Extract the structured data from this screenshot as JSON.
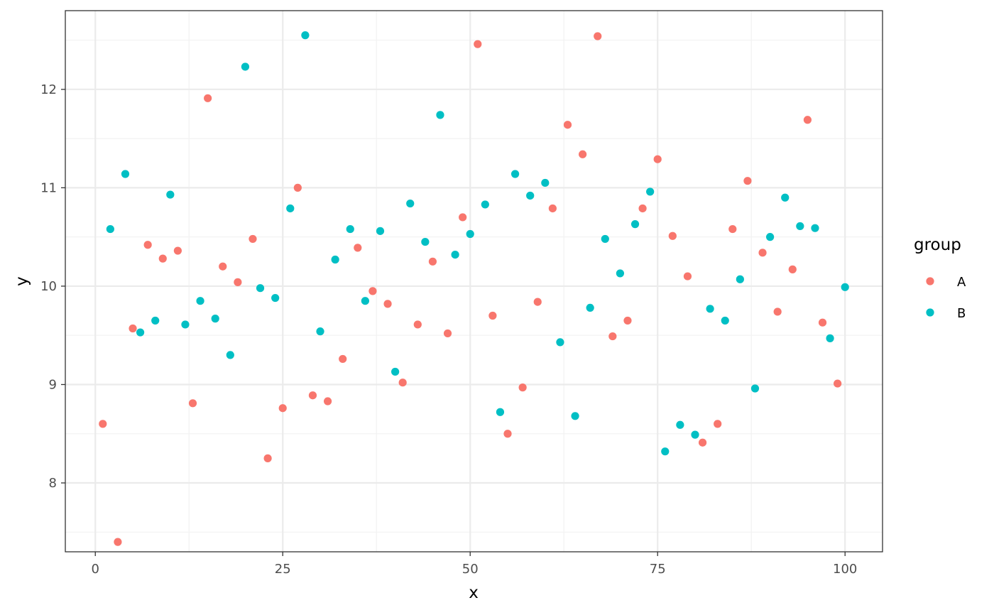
{
  "chart_data": {
    "type": "scatter",
    "xlabel": "x",
    "ylabel": "y",
    "xlim": [
      -4,
      105
    ],
    "ylim": [
      7.3,
      12.8
    ],
    "x_ticks": [
      0,
      25,
      50,
      75,
      100
    ],
    "x_tick_labels": [
      "0",
      "25",
      "50",
      "75",
      "100"
    ],
    "y_ticks": [
      8,
      9,
      10,
      11,
      12
    ],
    "y_tick_labels": [
      "8",
      "9",
      "10",
      "11",
      "12"
    ],
    "grid": true,
    "legend": {
      "title": "group",
      "position": "right"
    },
    "series": [
      {
        "name": "A",
        "color": "#F8766D",
        "points": [
          [
            1,
            8.6
          ],
          [
            3,
            7.4
          ],
          [
            5,
            9.57
          ],
          [
            7,
            10.42
          ],
          [
            9,
            10.28
          ],
          [
            11,
            10.36
          ],
          [
            13,
            8.81
          ],
          [
            15,
            11.91
          ],
          [
            17,
            10.2
          ],
          [
            19,
            10.04
          ],
          [
            21,
            10.48
          ],
          [
            23,
            8.25
          ],
          [
            25,
            8.76
          ],
          [
            27,
            11.0
          ],
          [
            29,
            8.89
          ],
          [
            31,
            8.83
          ],
          [
            33,
            9.26
          ],
          [
            35,
            10.39
          ],
          [
            37,
            9.95
          ],
          [
            39,
            9.82
          ],
          [
            41,
            9.02
          ],
          [
            43,
            9.61
          ],
          [
            45,
            10.25
          ],
          [
            47,
            9.52
          ],
          [
            49,
            10.7
          ],
          [
            51,
            12.46
          ],
          [
            53,
            9.7
          ],
          [
            55,
            8.5
          ],
          [
            57,
            8.97
          ],
          [
            59,
            9.84
          ],
          [
            61,
            10.79
          ],
          [
            63,
            11.64
          ],
          [
            65,
            11.34
          ],
          [
            67,
            12.54
          ],
          [
            69,
            9.49
          ],
          [
            71,
            9.65
          ],
          [
            73,
            10.79
          ],
          [
            75,
            11.29
          ],
          [
            77,
            10.51
          ],
          [
            79,
            10.1
          ],
          [
            81,
            8.41
          ],
          [
            83,
            8.6
          ],
          [
            85,
            10.58
          ],
          [
            87,
            11.07
          ],
          [
            89,
            10.34
          ],
          [
            91,
            9.74
          ],
          [
            93,
            10.17
          ],
          [
            95,
            11.69
          ],
          [
            97,
            9.63
          ],
          [
            99,
            9.01
          ]
        ]
      },
      {
        "name": "B",
        "color": "#00BFC4",
        "points": [
          [
            2,
            10.58
          ],
          [
            4,
            11.14
          ],
          [
            6,
            9.53
          ],
          [
            8,
            9.65
          ],
          [
            10,
            10.93
          ],
          [
            12,
            9.61
          ],
          [
            14,
            9.85
          ],
          [
            16,
            9.67
          ],
          [
            18,
            9.3
          ],
          [
            20,
            12.23
          ],
          [
            22,
            9.98
          ],
          [
            24,
            9.88
          ],
          [
            26,
            10.79
          ],
          [
            28,
            12.55
          ],
          [
            30,
            9.54
          ],
          [
            32,
            10.27
          ],
          [
            34,
            10.58
          ],
          [
            36,
            9.85
          ],
          [
            38,
            10.56
          ],
          [
            40,
            9.13
          ],
          [
            42,
            10.84
          ],
          [
            44,
            10.45
          ],
          [
            46,
            11.74
          ],
          [
            48,
            10.32
          ],
          [
            50,
            10.53
          ],
          [
            52,
            10.83
          ],
          [
            54,
            8.72
          ],
          [
            56,
            11.14
          ],
          [
            58,
            10.92
          ],
          [
            60,
            11.05
          ],
          [
            62,
            9.43
          ],
          [
            64,
            8.68
          ],
          [
            66,
            9.78
          ],
          [
            68,
            10.48
          ],
          [
            70,
            10.13
          ],
          [
            72,
            10.63
          ],
          [
            74,
            10.96
          ],
          [
            76,
            8.32
          ],
          [
            78,
            8.59
          ],
          [
            80,
            8.49
          ],
          [
            82,
            9.77
          ],
          [
            84,
            9.65
          ],
          [
            86,
            10.07
          ],
          [
            88,
            8.96
          ],
          [
            90,
            10.5
          ],
          [
            92,
            10.9
          ],
          [
            94,
            10.61
          ],
          [
            96,
            10.59
          ],
          [
            98,
            9.47
          ],
          [
            100,
            9.99
          ]
        ]
      }
    ]
  }
}
